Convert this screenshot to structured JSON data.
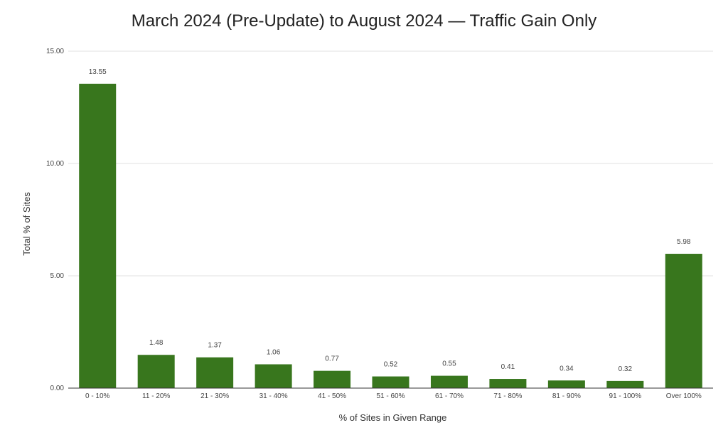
{
  "chart_data": {
    "type": "bar",
    "title": "March 2024 (Pre-Update) to August 2024 — Traffic Gain Only",
    "xlabel": "% of Sites in Given Range",
    "ylabel": "Total % of Sites",
    "categories": [
      "0 - 10%",
      "11 - 20%",
      "21 - 30%",
      "31 - 40%",
      "41 - 50%",
      "51 - 60%",
      "61 - 70%",
      "71 - 80%",
      "81 - 90%",
      "91 - 100%",
      "Over 100%"
    ],
    "values": [
      13.55,
      1.48,
      1.37,
      1.06,
      0.77,
      0.52,
      0.55,
      0.41,
      0.34,
      0.32,
      5.98
    ],
    "data_labels": [
      "13.55",
      "1.48",
      "1.37",
      "1.06",
      "0.77",
      "0.52",
      "0.55",
      "0.41",
      "0.34",
      "0.32",
      "5.98"
    ],
    "ylim": [
      0,
      15
    ],
    "y_ticks": [
      0,
      5,
      10,
      15
    ],
    "y_tick_labels": [
      "0.00",
      "5.00",
      "10.00",
      "15.00"
    ],
    "grid": true,
    "bar_color": "#38761d",
    "grid_color": "#e0e0e0"
  }
}
